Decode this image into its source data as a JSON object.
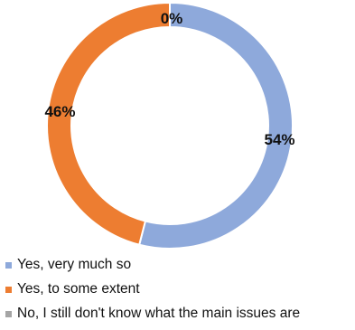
{
  "chart_data": {
    "type": "pie",
    "donut": true,
    "categories": [
      "Yes, very much so",
      "Yes, to some extent",
      "No, I still don't know what the main issues are"
    ],
    "values": [
      54,
      46,
      0
    ],
    "data_labels": [
      "54%",
      "46%",
      "0%"
    ],
    "colors": [
      "#8EA9DB",
      "#ED7D31",
      "#A5A5A5"
    ],
    "legend_position": "bottom-left"
  }
}
